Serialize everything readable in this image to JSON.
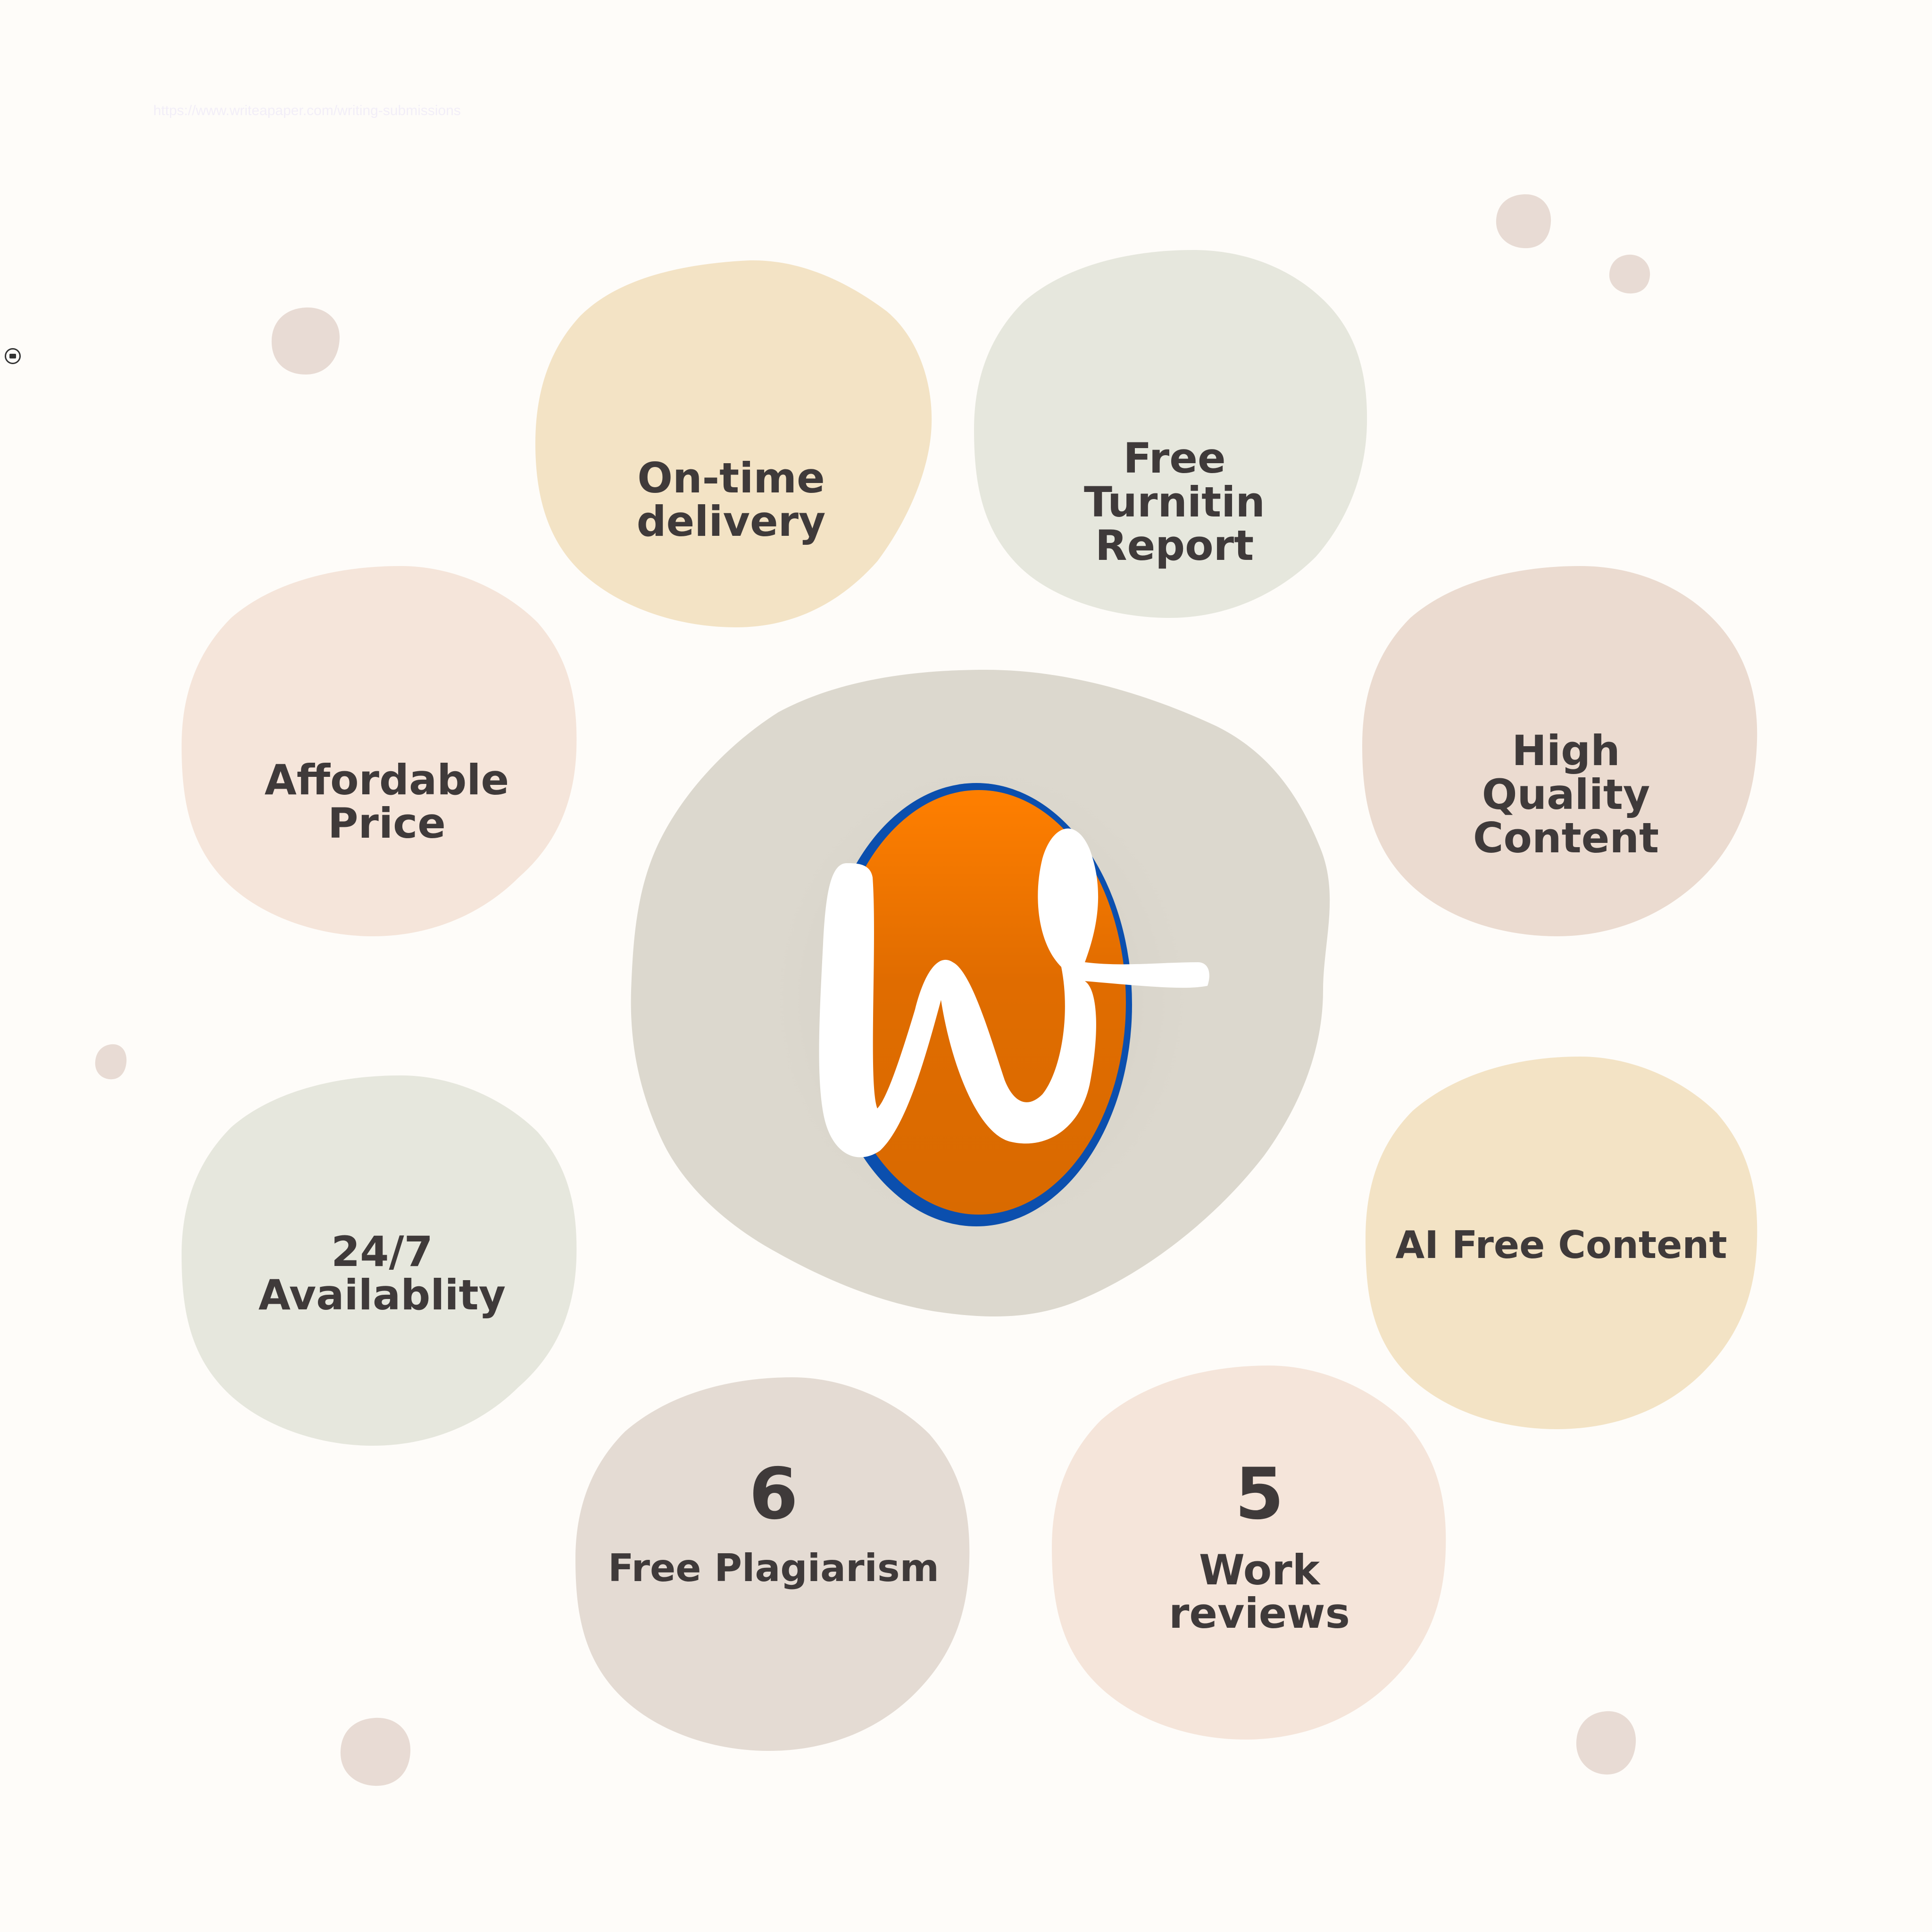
{
  "header": {
    "url_text": "https://www.writeapaper.com/writing-submissions"
  },
  "colors": {
    "background": "#fefcf9",
    "yellow": "#f3e3c5",
    "sage": "#e6e7dd",
    "peach": "#f5e5da",
    "rose": "#ebdbd0",
    "taupe": "#e4dbd3",
    "center": "#dcd8ce",
    "dot": "#e8dbd4",
    "logo_orange": "#ee7a0a",
    "logo_blue": "#0b4fae",
    "text": "#3f3a3a"
  },
  "logo": {
    "letter": "W",
    "icon": "w-script-logo-icon"
  },
  "side_icon": {
    "icon": "mail-icon"
  },
  "features": {
    "on_time": {
      "lines": [
        "On-time",
        "delivery"
      ]
    },
    "turnitin": {
      "lines": [
        "Free",
        "Turnitin",
        "Report"
      ]
    },
    "affordable": {
      "lines": [
        "Affordable",
        "Price"
      ]
    },
    "quality": {
      "lines": [
        "High",
        "Quality",
        "Content"
      ]
    },
    "availability": {
      "lines": [
        "24/7",
        "Availablity"
      ]
    },
    "ai_free": {
      "lines": [
        "AI Free Content"
      ]
    },
    "plagiarism": {
      "number": "6",
      "lines": [
        "Free Plagiarism"
      ]
    },
    "reviews": {
      "number": "5",
      "lines": [
        "Work",
        "reviews"
      ]
    }
  }
}
